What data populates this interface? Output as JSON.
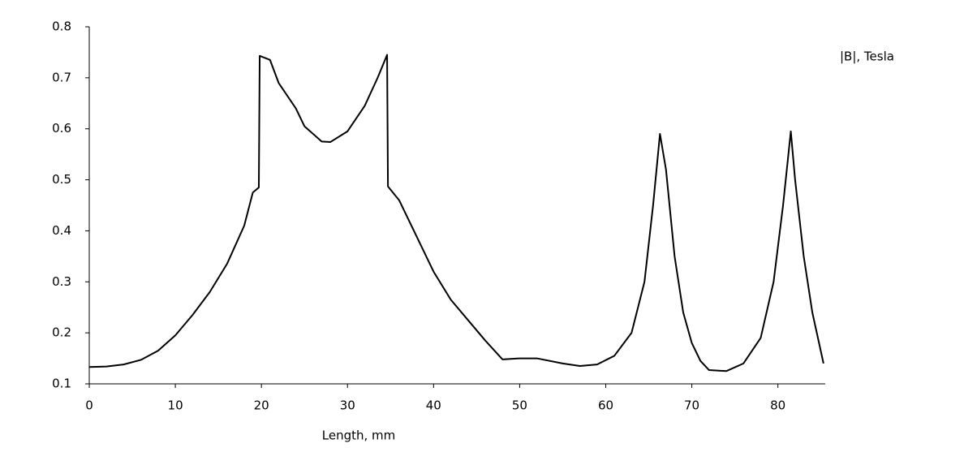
{
  "chart_data": {
    "type": "line",
    "y_label": "|B|, Tesla",
    "x_label": "Length, mm",
    "x": [
      0,
      2,
      4,
      6,
      8,
      10,
      12,
      14,
      16,
      18,
      19,
      19.7,
      19.8,
      21,
      22,
      24,
      25,
      27,
      28,
      30,
      32,
      33.5,
      34.6,
      34.7,
      36,
      38,
      40,
      42,
      44,
      46,
      48,
      50,
      52,
      55,
      57,
      59,
      61,
      63,
      64.5,
      65.5,
      66.3,
      67,
      68,
      69,
      70,
      71,
      72,
      74,
      76,
      78,
      79.5,
      80.6,
      81.5,
      82,
      83,
      84,
      85.3
    ],
    "series": [
      {
        "name": "|B|",
        "color": "#000000",
        "values": [
          0.133,
          0.134,
          0.138,
          0.147,
          0.165,
          0.195,
          0.235,
          0.28,
          0.335,
          0.41,
          0.475,
          0.485,
          0.743,
          0.735,
          0.69,
          0.64,
          0.605,
          0.575,
          0.574,
          0.595,
          0.645,
          0.7,
          0.745,
          0.487,
          0.46,
          0.39,
          0.32,
          0.265,
          0.225,
          0.185,
          0.148,
          0.15,
          0.15,
          0.14,
          0.135,
          0.138,
          0.155,
          0.2,
          0.3,
          0.45,
          0.59,
          0.52,
          0.35,
          0.24,
          0.18,
          0.145,
          0.127,
          0.125,
          0.14,
          0.19,
          0.3,
          0.45,
          0.595,
          0.5,
          0.35,
          0.24,
          0.14
        ]
      }
    ],
    "xlim": [
      0,
      85.5
    ],
    "ylim": [
      0.1,
      0.8
    ],
    "xticks": [
      0,
      10,
      20,
      30,
      40,
      50,
      60,
      70,
      80
    ],
    "yticks": [
      0.1,
      0.2,
      0.3,
      0.4,
      0.5,
      0.6,
      0.7,
      0.8
    ]
  }
}
